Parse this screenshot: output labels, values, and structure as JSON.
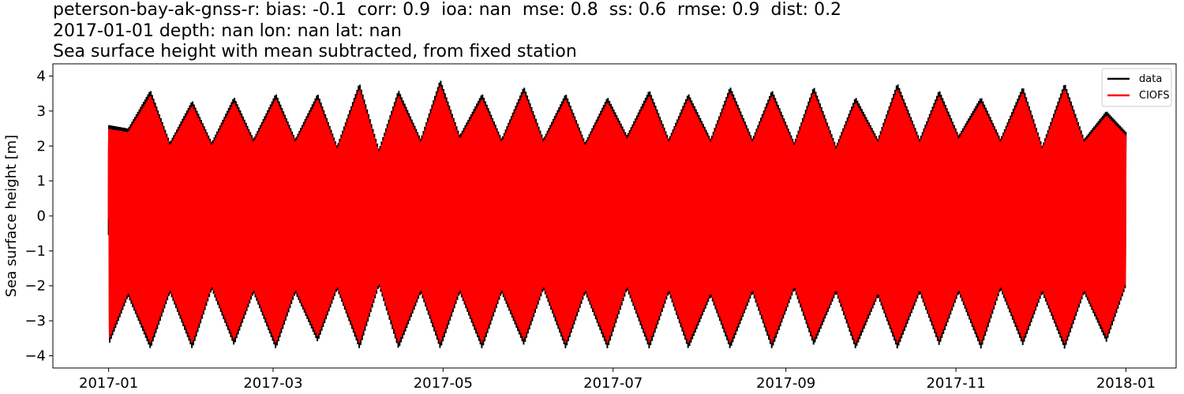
{
  "chart_data": {
    "type": "line",
    "title_lines": [
      "peterson-bay-ak-gnss-r: bias: -0.1  corr: 0.9  ioa: nan  mse: 0.8  ss: 0.6  rmse: 0.9  dist: 0.2",
      "2017-01-01 depth: nan lon: nan lat: nan",
      "Sea surface height with mean subtracted, from fixed station"
    ],
    "xlabel": "",
    "ylabel": "Sea surface height [m]",
    "xlim": [
      "2016-12-12",
      "2018-01-19"
    ],
    "ylim": [
      -4.35,
      4.35
    ],
    "x_ticks": [
      "2017-01",
      "2017-03",
      "2017-05",
      "2017-07",
      "2017-09",
      "2017-11",
      "2018-01"
    ],
    "y_ticks": [
      "−4",
      "−3",
      "−2",
      "−1",
      "0",
      "1",
      "2",
      "3",
      "4"
    ],
    "grid": false,
    "legend_position": "top-right",
    "series": [
      {
        "name": "data",
        "color": "#000000"
      },
      {
        "name": "CIOFS",
        "color": "#ff0000"
      }
    ],
    "x_range": [
      "2017-01-01",
      "2018-01-01"
    ],
    "envelope": {
      "description_dates": [
        "2017-01-01",
        "2017-01-08",
        "2017-01-16",
        "2017-01-23",
        "2017-01-31",
        "2017-02-07",
        "2017-02-15",
        "2017-02-22",
        "2017-03-02",
        "2017-03-09",
        "2017-03-17",
        "2017-03-24",
        "2017-04-01",
        "2017-04-08",
        "2017-04-15",
        "2017-04-23",
        "2017-04-30",
        "2017-05-07",
        "2017-05-15",
        "2017-05-22",
        "2017-05-30",
        "2017-06-06",
        "2017-06-14",
        "2017-06-21",
        "2017-06-29",
        "2017-07-06",
        "2017-07-14",
        "2017-07-21",
        "2017-07-28",
        "2017-08-05",
        "2017-08-12",
        "2017-08-20",
        "2017-08-27",
        "2017-09-04",
        "2017-09-11",
        "2017-09-19",
        "2017-09-26",
        "2017-10-04",
        "2017-10-11",
        "2017-10-19",
        "2017-10-26",
        "2017-11-02",
        "2017-11-10",
        "2017-11-17",
        "2017-11-25",
        "2017-12-02",
        "2017-12-10",
        "2017-12-17",
        "2017-12-25",
        "2018-01-01"
      ],
      "max": [
        2.6,
        2.5,
        3.6,
        2.1,
        3.3,
        2.1,
        3.4,
        2.2,
        3.5,
        2.2,
        3.5,
        2.0,
        3.8,
        1.9,
        3.6,
        2.2,
        3.9,
        2.3,
        3.5,
        2.2,
        3.7,
        2.2,
        3.5,
        2.1,
        3.4,
        2.3,
        3.6,
        2.2,
        3.5,
        2.2,
        3.7,
        2.2,
        3.6,
        2.1,
        3.7,
        2.0,
        3.4,
        2.2,
        3.8,
        2.2,
        3.6,
        2.3,
        3.4,
        2.2,
        3.7,
        2.0,
        3.8,
        2.2,
        3.0,
        2.4
      ],
      "min": [
        -3.7,
        -2.3,
        -3.8,
        -2.2,
        -3.8,
        -2.1,
        -3.7,
        -2.2,
        -3.8,
        -2.2,
        -3.6,
        -2.1,
        -3.8,
        -2.0,
        -3.8,
        -2.2,
        -3.8,
        -2.2,
        -3.8,
        -2.2,
        -3.7,
        -2.1,
        -3.8,
        -2.2,
        -3.8,
        -2.1,
        -3.8,
        -2.2,
        -3.8,
        -2.3,
        -3.8,
        -2.2,
        -3.8,
        -2.1,
        -3.7,
        -2.2,
        -3.8,
        -2.3,
        -3.8,
        -2.2,
        -3.7,
        -2.2,
        -3.8,
        -2.1,
        -3.7,
        -2.2,
        -3.8,
        -2.2,
        -3.6,
        -2.0
      ]
    }
  }
}
